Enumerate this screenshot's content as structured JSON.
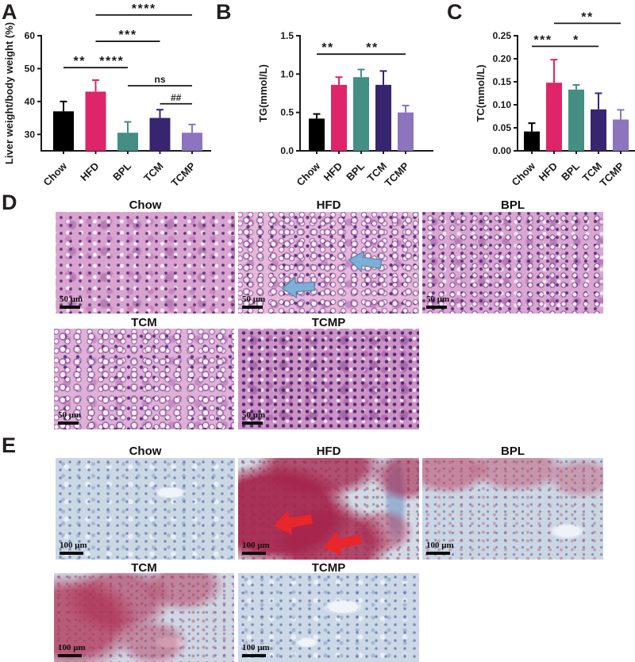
{
  "panels": {
    "a": "A",
    "b": "B",
    "c": "C",
    "d": "D",
    "e": "E"
  },
  "chart_data": [
    {
      "id": "A",
      "type": "bar",
      "ylabel": "Liver weight/body weight (%)",
      "categories": [
        "Chow",
        "HFD",
        "BPL",
        "TCM",
        "TCMP"
      ],
      "values": [
        37,
        43,
        30.5,
        35,
        30.5
      ],
      "errors": [
        3,
        3.5,
        3.3,
        2.5,
        2.5
      ],
      "bar_colors": [
        "#000000",
        "#E0246A",
        "#448E83",
        "#38256F",
        "#8C74BE"
      ],
      "ylim": [
        25,
        60
      ],
      "yticks": [
        30,
        40,
        50,
        60
      ],
      "ytick_labels": [
        "30",
        "40",
        "50",
        "60"
      ],
      "significance": [
        {
          "from": 0,
          "to": 1,
          "label": "**",
          "y": 50.3
        },
        {
          "from": 1,
          "to": 2,
          "label": "****",
          "y": 50.3
        },
        {
          "from": 1,
          "to": 3,
          "label": "***",
          "y": 58.3
        },
        {
          "from": 1,
          "to": 4,
          "label": "****",
          "y": 66.3
        },
        {
          "from": 2,
          "to": 4,
          "label": "ns",
          "y": 44.8
        },
        {
          "from": 3,
          "to": 4,
          "label": "##",
          "y": 39.3
        }
      ]
    },
    {
      "id": "B",
      "type": "bar",
      "ylabel": "TG(mmol/L)",
      "categories": [
        "Chow",
        "HFD",
        "BPL",
        "TCM",
        "TCMP"
      ],
      "values": [
        0.42,
        0.86,
        0.96,
        0.86,
        0.5
      ],
      "errors": [
        0.06,
        0.1,
        0.1,
        0.18,
        0.09
      ],
      "bar_colors": [
        "#000000",
        "#E0246A",
        "#448E83",
        "#38256F",
        "#8C74BE"
      ],
      "ylim": [
        0,
        1.5
      ],
      "yticks": [
        0,
        0.5,
        1.0,
        1.5
      ],
      "ytick_labels": [
        "0.0",
        "0.5",
        "1.0",
        "1.5"
      ],
      "significance": [
        {
          "from": 0,
          "to": 1,
          "label": "**",
          "y": 1.26
        },
        {
          "from": 1,
          "to": 4,
          "label": "**",
          "y": 1.26
        }
      ]
    },
    {
      "id": "C",
      "type": "bar",
      "ylabel": "TC(mmol/L)",
      "categories": [
        "Chow",
        "HFD",
        "BPL",
        "TCM",
        "TCMP"
      ],
      "values": [
        0.042,
        0.148,
        0.133,
        0.09,
        0.068
      ],
      "errors": [
        0.018,
        0.05,
        0.01,
        0.035,
        0.021
      ],
      "bar_colors": [
        "#000000",
        "#E0246A",
        "#448E83",
        "#38256F",
        "#8C74BE"
      ],
      "ylim": [
        0,
        0.25
      ],
      "yticks": [
        0,
        0.05,
        0.1,
        0.15,
        0.2,
        0.25
      ],
      "ytick_labels": [
        "0.00",
        "0.05",
        "0.10",
        "0.15",
        "0.20",
        "0.25"
      ],
      "significance": [
        {
          "from": 0,
          "to": 1,
          "label": "***",
          "y": 0.227
        },
        {
          "from": 1,
          "to": 3,
          "label": "*",
          "y": 0.227
        },
        {
          "from": 1,
          "to": 4,
          "label": "**",
          "y": 0.277
        }
      ]
    }
  ],
  "histology": {
    "d": {
      "scale_label": "50 μm",
      "tiles": [
        {
          "title": "Chow"
        },
        {
          "title": "HFD"
        },
        {
          "title": "BPL"
        },
        {
          "title": "TCM"
        },
        {
          "title": "TCMP"
        }
      ]
    },
    "e": {
      "scale_label": "100 μm",
      "tiles": [
        {
          "title": "Chow"
        },
        {
          "title": "HFD"
        },
        {
          "title": "BPL"
        },
        {
          "title": "TCM"
        },
        {
          "title": "TCMP"
        }
      ]
    }
  },
  "colors": {
    "steatosis_arrow": "#7cb0d6",
    "lipid_arrow": "#e8262b"
  }
}
